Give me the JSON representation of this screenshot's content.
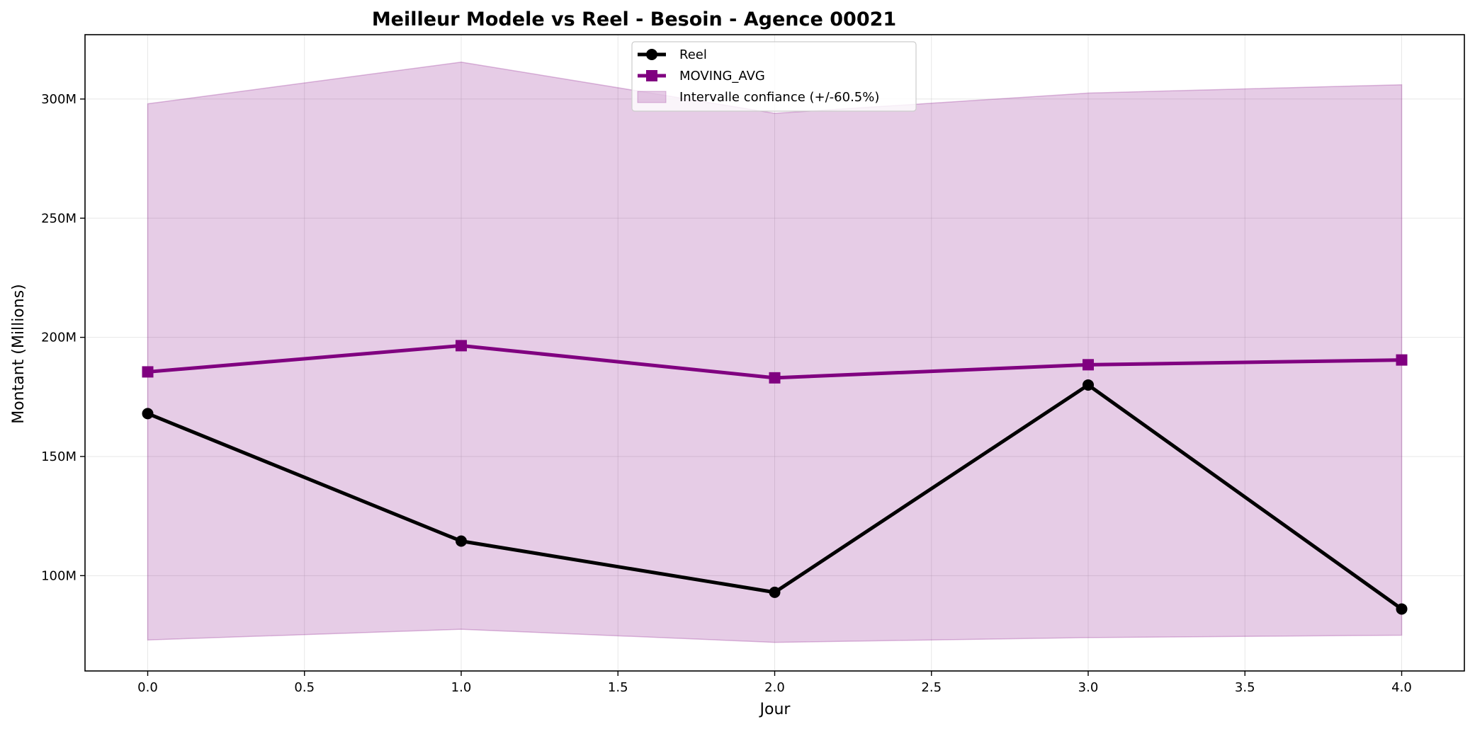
{
  "chart_data": {
    "type": "line",
    "title": "Meilleur Modele vs Reel - Besoin - Agence 00021",
    "xlabel": "Jour",
    "ylabel": "Montant (Millions)",
    "x": [
      0,
      1,
      2,
      3,
      4
    ],
    "xlim": [
      -0.2,
      4.2
    ],
    "ylim": [
      60,
      327
    ],
    "x_ticks": [
      0.0,
      0.5,
      1.0,
      1.5,
      2.0,
      2.5,
      3.0,
      3.5,
      4.0
    ],
    "x_tick_labels": [
      "0.0",
      "0.5",
      "1.0",
      "1.5",
      "2.0",
      "2.5",
      "3.0",
      "3.5",
      "4.0"
    ],
    "y_ticks": [
      100,
      150,
      200,
      250,
      300
    ],
    "y_tick_labels": [
      "100M",
      "150M",
      "200M",
      "250M",
      "300M"
    ],
    "grid": true,
    "legend_position": "top-center",
    "series": [
      {
        "name": "Reel",
        "values": [
          168,
          114.5,
          93,
          180,
          86
        ],
        "color": "#000000",
        "marker": "circle"
      },
      {
        "name": "MOVING_AVG",
        "values": [
          185.5,
          196.5,
          183,
          188.5,
          190.5
        ],
        "color": "#800080",
        "marker": "square"
      }
    ],
    "band": {
      "name": "Intervalle confiance (+/-60.5%)",
      "lower": [
        73,
        77.5,
        72,
        74,
        75
      ],
      "upper": [
        298,
        315.5,
        294,
        302.5,
        306
      ],
      "color": "#800080"
    }
  }
}
